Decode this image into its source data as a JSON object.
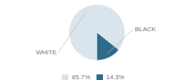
{
  "chart_data": {
    "type": "pie",
    "categories": [
      "WHITE",
      "BLACK"
    ],
    "values": [
      85.7,
      14.3
    ],
    "value_labels": [
      "85.7%",
      "14.3%"
    ],
    "colors": [
      "#d9e4ec",
      "#2e6b8a"
    ],
    "legend": "bottom"
  }
}
